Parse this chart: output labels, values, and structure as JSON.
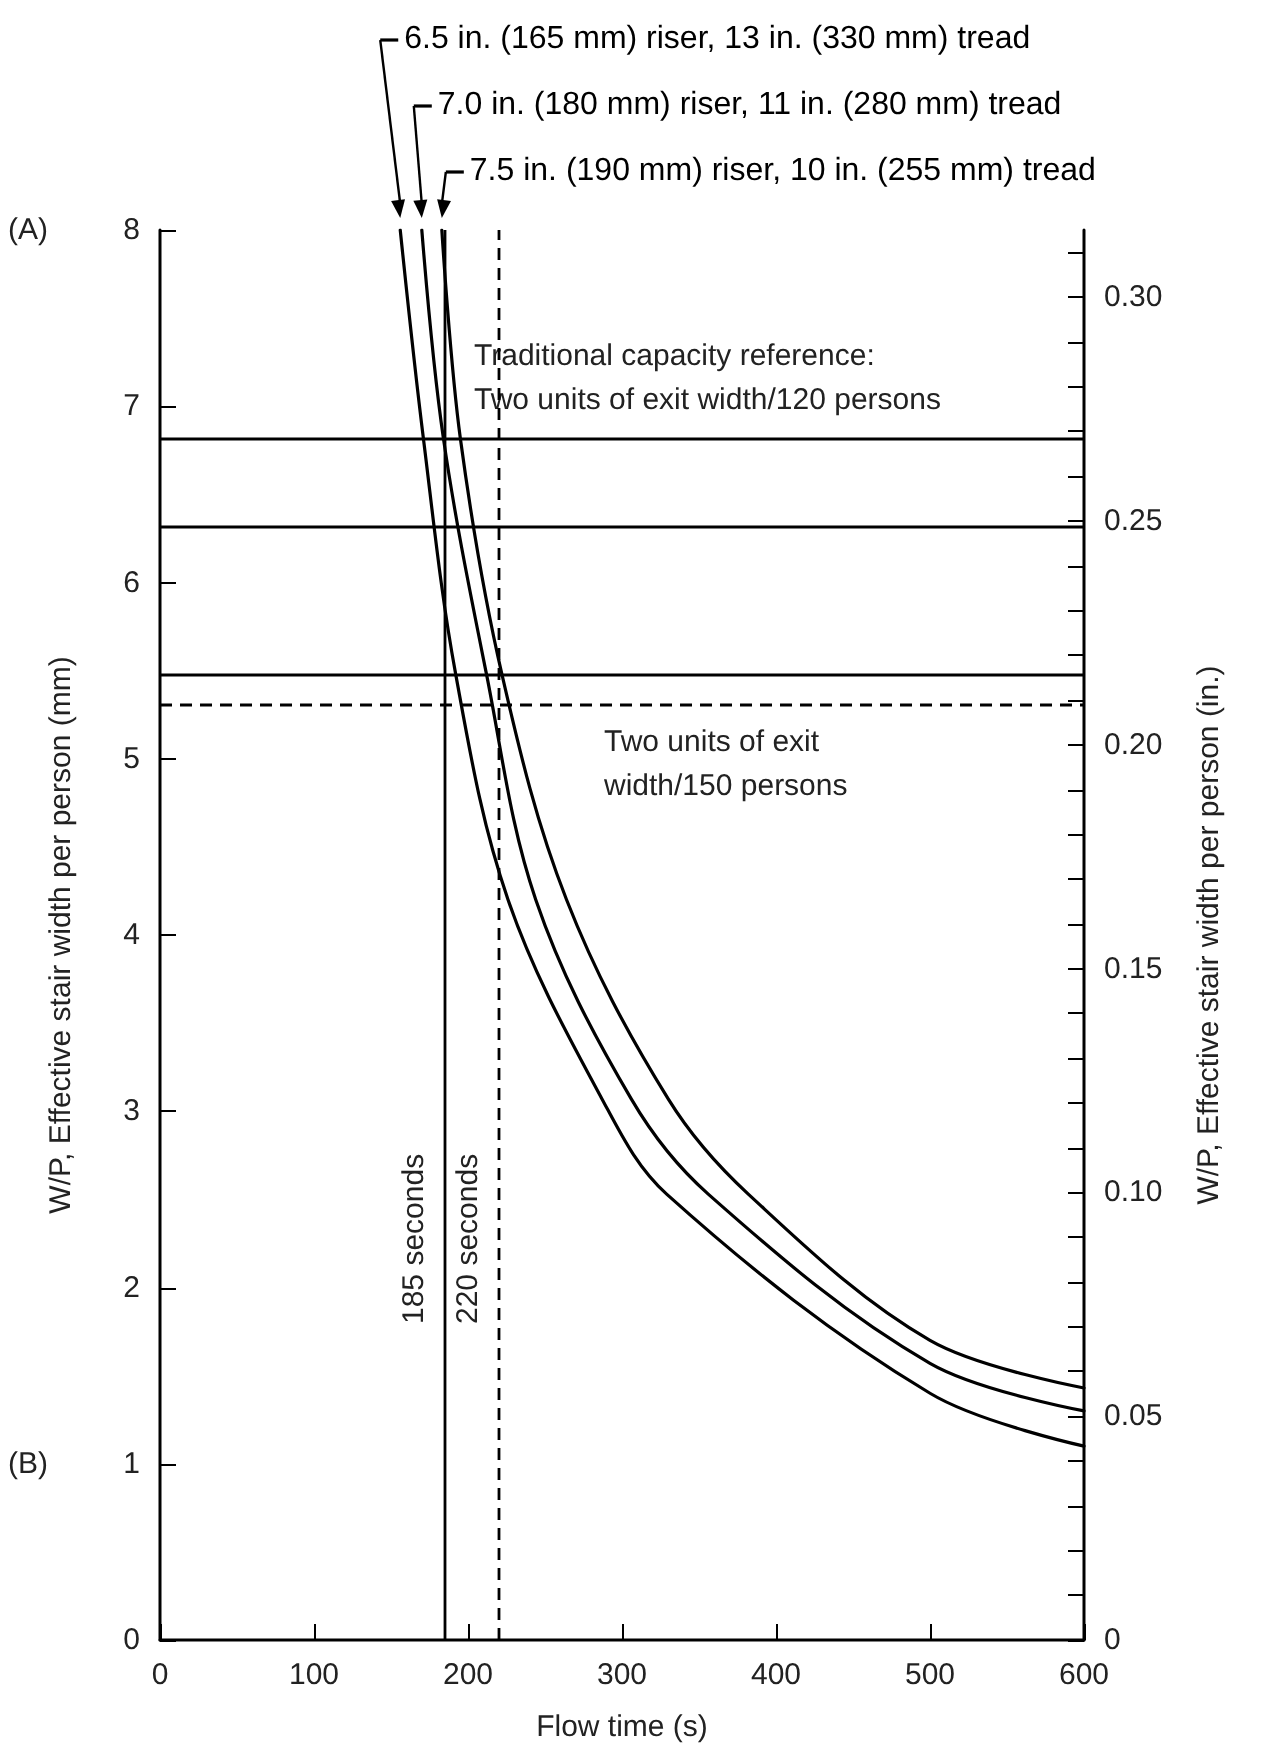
{
  "chart_data": {
    "type": "line",
    "xlabel": "Flow time (s)",
    "ylabel": "W/P, Effective stair width per person (mm)",
    "y2label": "W/P, Effective stair width per person (in.)",
    "series": [
      {
        "name": "6.5 in. (165 mm) riser, 13 in. (330 mm) tread",
        "color": "#000000",
        "x": [
          156,
          171,
          192,
          226,
          287,
          329,
          500,
          600
        ],
        "values": [
          8,
          6.82,
          5.48,
          4.2,
          3.07,
          2.53,
          1.4,
          1.1
        ]
      },
      {
        "name": "7.0 in. (180 mm) riser, 11 in. (280 mm) tread",
        "color": "#000000",
        "x": [
          170,
          184,
          212,
          244,
          306,
          356,
          500,
          600
        ],
        "values": [
          8,
          6.82,
          5.48,
          4.2,
          3.07,
          2.53,
          1.57,
          1.3
        ]
      },
      {
        "name": "7.5 in. (190 mm) riser, 10 in. (255 mm) tread",
        "color": "#000000",
        "x": [
          183,
          195,
          222,
          264,
          330,
          382,
          500,
          600
        ],
        "values": [
          8,
          6.82,
          5.48,
          4.2,
          3.07,
          2.53,
          1.7,
          1.43
        ]
      }
    ],
    "xlim": [
      0,
      600
    ],
    "xticks": [
      0,
      100,
      200,
      300,
      400,
      500,
      600
    ],
    "ylim": [
      0,
      8
    ],
    "yticks": [
      0,
      1,
      2,
      3,
      4,
      5,
      6,
      7,
      8
    ],
    "y2lim": [
      0,
      0.315
    ],
    "y2ticks": [
      {
        "value": 0,
        "label": "0"
      },
      {
        "value": 0.01,
        "label": null
      },
      {
        "value": 0.02,
        "label": null
      },
      {
        "value": 0.03,
        "label": null
      },
      {
        "value": 0.04,
        "label": null
      },
      {
        "value": 0.05,
        "label": "0.05"
      },
      {
        "value": 0.06,
        "label": null
      },
      {
        "value": 0.07,
        "label": null
      },
      {
        "value": 0.08,
        "label": null
      },
      {
        "value": 0.09,
        "label": null
      },
      {
        "value": 0.1,
        "label": "0.10"
      },
      {
        "value": 0.11,
        "label": null
      },
      {
        "value": 0.12,
        "label": null
      },
      {
        "value": 0.13,
        "label": null
      },
      {
        "value": 0.14,
        "label": null
      },
      {
        "value": 0.15,
        "label": "0.15"
      },
      {
        "value": 0.16,
        "label": null
      },
      {
        "value": 0.17,
        "label": null
      },
      {
        "value": 0.18,
        "label": null
      },
      {
        "value": 0.19,
        "label": null
      },
      {
        "value": 0.2,
        "label": "0.20"
      },
      {
        "value": 0.21,
        "label": null
      },
      {
        "value": 0.22,
        "label": null
      },
      {
        "value": 0.23,
        "label": null
      },
      {
        "value": 0.24,
        "label": null
      },
      {
        "value": 0.25,
        "label": "0.25"
      },
      {
        "value": 0.26,
        "label": null
      },
      {
        "value": 0.27,
        "label": null
      },
      {
        "value": 0.28,
        "label": null
      },
      {
        "value": 0.29,
        "label": null
      },
      {
        "value": 0.3,
        "label": "0.30"
      },
      {
        "value": 0.31,
        "label": null
      }
    ],
    "ref_lines": [
      {
        "axis": "y",
        "value": 6.82,
        "label": "Traditional capacity reference: Two units of exit width/120 persons",
        "color": "#000000"
      },
      {
        "axis": "y",
        "value": 6.32,
        "color": "#000000"
      },
      {
        "axis": "y",
        "value": 5.48,
        "color": "#000000"
      },
      {
        "axis": "y",
        "value": 5.31,
        "label": "Two units of exit width/150 persons",
        "color": "#000000",
        "line_style": "dashed"
      },
      {
        "axis": "x",
        "value": 185,
        "label": "185 seconds",
        "color": "#000000"
      },
      {
        "axis": "x",
        "value": 220,
        "label": "220 seconds",
        "color": "#000000",
        "line_style": "dashed"
      }
    ],
    "annotations": [
      "(A)",
      "(B)"
    ],
    "marker": "none",
    "line_style": "solid",
    "grid": false,
    "legend": "top"
  }
}
